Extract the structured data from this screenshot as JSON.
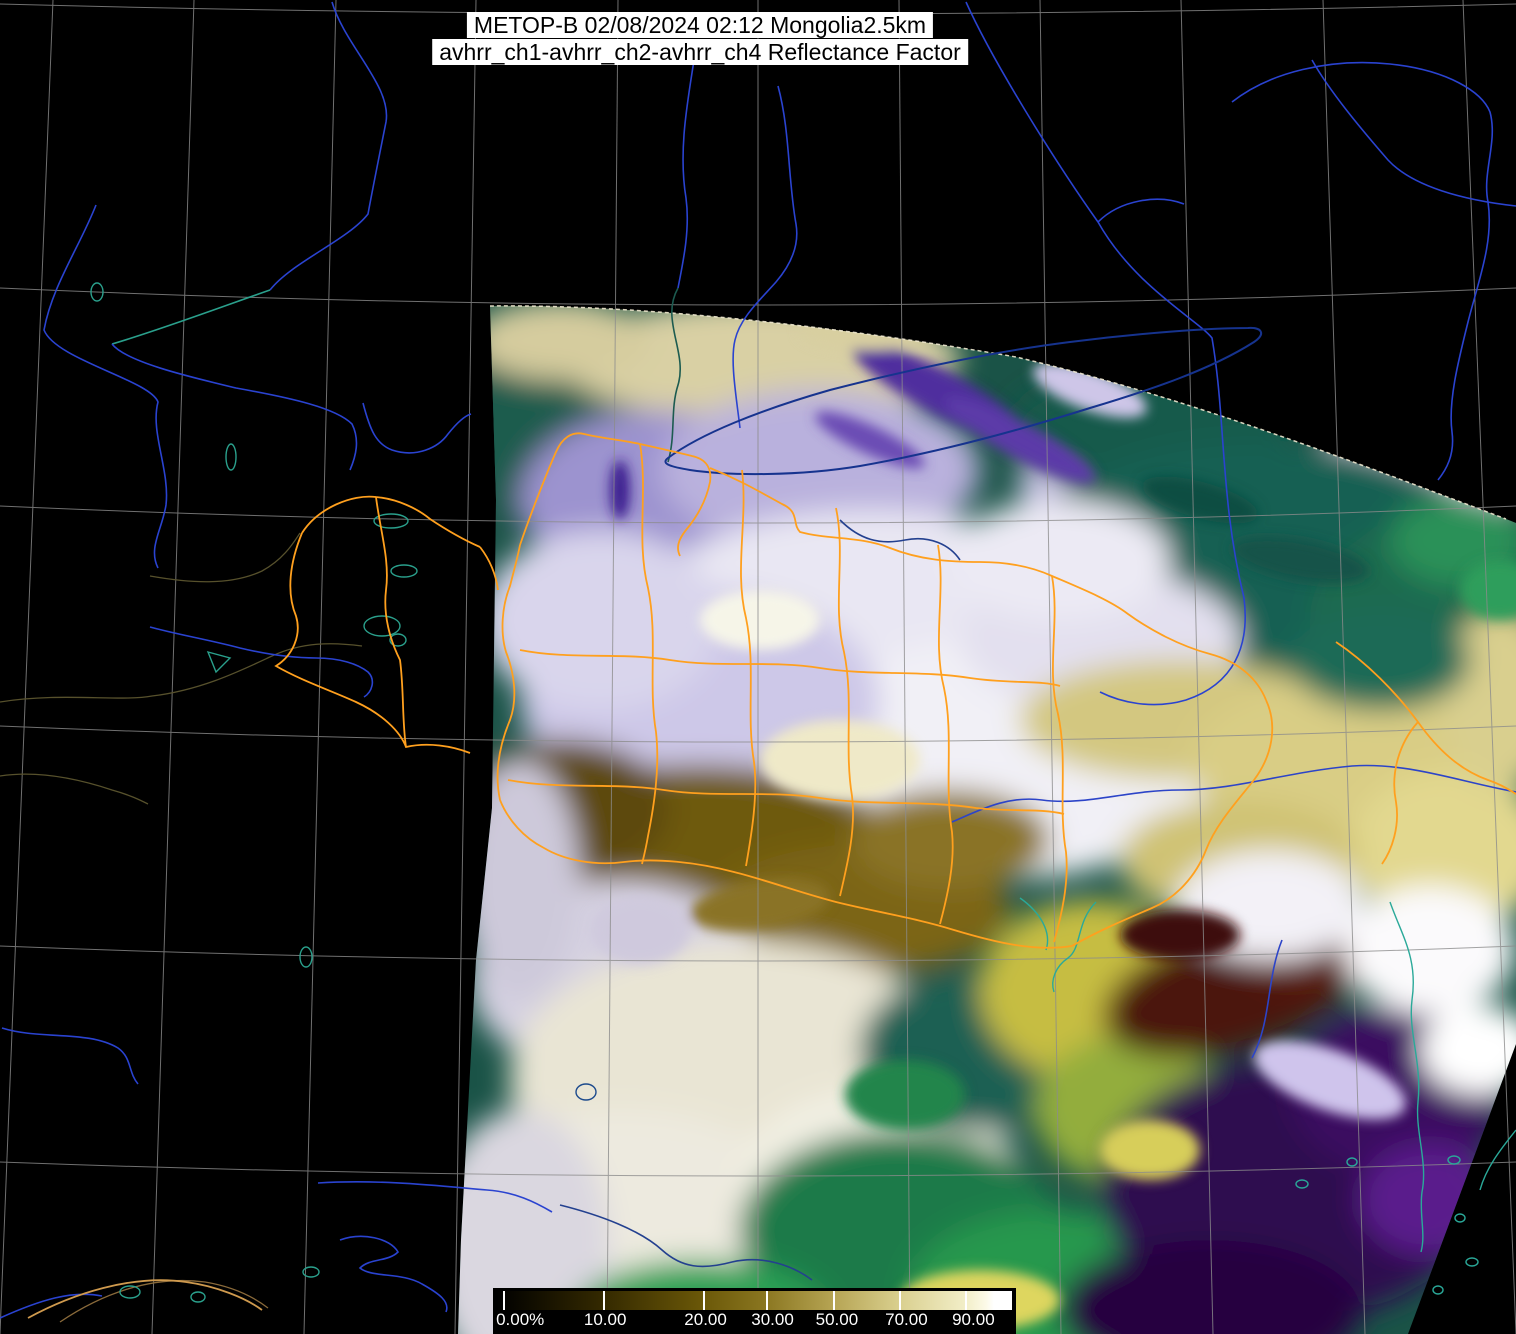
{
  "header": {
    "line1": "METOP-B 02/08/2024 02:12 Mongolia2.5km",
    "line2": "avhrr_ch1-avhrr_ch2-avhrr_ch4 Reflectance Factor",
    "satellite": "METOP-B",
    "date": "02/08/2024",
    "time": "02:12",
    "region": "Mongolia",
    "resolution": "2.5km",
    "channels": "avhrr_ch1-avhrr_ch2-avhrr_ch4",
    "quantity": "Reflectance Factor"
  },
  "legend": {
    "ticks": [
      {
        "label": "0.00%",
        "pos": 0.012,
        "lpos": 0.045
      },
      {
        "label": "10.00",
        "pos": 0.206,
        "lpos": 0.21
      },
      {
        "label": "20.00",
        "pos": 0.4,
        "lpos": 0.405
      },
      {
        "label": "30.00",
        "pos": 0.522,
        "lpos": 0.535
      },
      {
        "label": "50.00",
        "pos": 0.652,
        "lpos": 0.66
      },
      {
        "label": "70.00",
        "pos": 0.781,
        "lpos": 0.795
      },
      {
        "label": "90.00",
        "pos": 0.909,
        "lpos": 0.925
      }
    ],
    "gradient": [
      "#000000 0%",
      "#352a00 21%",
      "#6b5808 40%",
      "#8a7620 52%",
      "#b5a352 65%",
      "#d9cf8e 78%",
      "#f2eec8 91%",
      "#fcfae8 95%",
      "#ffffff 96.5%",
      "#ffffff 100%"
    ]
  },
  "colors": {
    "background": "#000000",
    "graticule": "#8c8c8c",
    "river_blue": "#2a43d0",
    "lake_outline_teal": "#2aa08c",
    "country_border_orange": "#ffa01e",
    "border_dim_olive": "#57512c",
    "baikal_outline": "#16338e",
    "coastline_teal": "#2aa999",
    "title_background": "#ffffff",
    "title_text": "#000000",
    "legend_text": "#ffffff"
  }
}
